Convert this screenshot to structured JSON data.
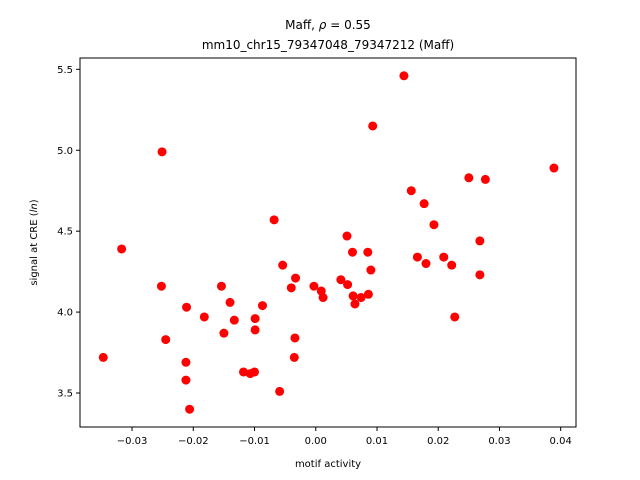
{
  "chart_data": {
    "type": "scatter",
    "title_line1_prefix": "Maff, ",
    "title_line1_rho": "ρ",
    "title_line1_suffix": " = 0.55",
    "title_line2": "mm10_chr15_79347048_79347212 (Maff)",
    "xlabel": "motif activity",
    "ylabel_prefix": "signal at CRE (",
    "ylabel_italic": "ln",
    "ylabel_suffix": ")",
    "xlim": [
      -0.0385,
      0.0425
    ],
    "ylim": [
      3.29,
      5.57
    ],
    "xticks": [
      -0.03,
      -0.02,
      -0.01,
      0.0,
      0.01,
      0.02,
      0.03,
      0.04
    ],
    "xtick_labels": [
      "−0.03",
      "−0.02",
      "−0.01",
      "0.00",
      "0.01",
      "0.02",
      "0.03",
      "0.04"
    ],
    "yticks": [
      3.5,
      4.0,
      4.5,
      5.0,
      5.5
    ],
    "ytick_labels": [
      "3.5",
      "4.0",
      "4.5",
      "5.0",
      "5.5"
    ],
    "grid": false,
    "marker_color": "#ff0000",
    "points": [
      {
        "x": -0.0347,
        "y": 3.72
      },
      {
        "x": -0.0317,
        "y": 4.39
      },
      {
        "x": -0.0251,
        "y": 4.99
      },
      {
        "x": -0.0252,
        "y": 4.16
      },
      {
        "x": -0.0245,
        "y": 3.83
      },
      {
        "x": -0.0211,
        "y": 4.03
      },
      {
        "x": -0.0212,
        "y": 3.69
      },
      {
        "x": -0.0212,
        "y": 3.58
      },
      {
        "x": -0.0206,
        "y": 3.4
      },
      {
        "x": -0.0182,
        "y": 3.97
      },
      {
        "x": -0.0154,
        "y": 4.16
      },
      {
        "x": -0.015,
        "y": 3.87
      },
      {
        "x": -0.014,
        "y": 4.06
      },
      {
        "x": -0.0133,
        "y": 3.95
      },
      {
        "x": -0.0118,
        "y": 3.63
      },
      {
        "x": -0.0107,
        "y": 3.62
      },
      {
        "x": -0.01,
        "y": 3.63
      },
      {
        "x": -0.0099,
        "y": 3.96
      },
      {
        "x": -0.0099,
        "y": 3.89
      },
      {
        "x": -0.0087,
        "y": 4.04
      },
      {
        "x": -0.0068,
        "y": 4.57
      },
      {
        "x": -0.0059,
        "y": 3.51
      },
      {
        "x": -0.0054,
        "y": 4.29
      },
      {
        "x": -0.004,
        "y": 4.15
      },
      {
        "x": -0.0033,
        "y": 4.21
      },
      {
        "x": -0.0034,
        "y": 3.84
      },
      {
        "x": -0.0035,
        "y": 3.72
      },
      {
        "x": -0.0003,
        "y": 4.16
      },
      {
        "x": 0.0009,
        "y": 4.13
      },
      {
        "x": 0.0012,
        "y": 4.09
      },
      {
        "x": 0.0041,
        "y": 4.2
      },
      {
        "x": 0.0051,
        "y": 4.47
      },
      {
        "x": 0.0052,
        "y": 4.17
      },
      {
        "x": 0.006,
        "y": 4.37
      },
      {
        "x": 0.0061,
        "y": 4.1
      },
      {
        "x": 0.0064,
        "y": 4.05
      },
      {
        "x": 0.0074,
        "y": 4.09
      },
      {
        "x": 0.0085,
        "y": 4.37
      },
      {
        "x": 0.0086,
        "y": 4.11
      },
      {
        "x": 0.009,
        "y": 4.26
      },
      {
        "x": 0.0093,
        "y": 5.15
      },
      {
        "x": 0.0144,
        "y": 5.46
      },
      {
        "x": 0.0156,
        "y": 4.75
      },
      {
        "x": 0.0166,
        "y": 4.34
      },
      {
        "x": 0.0177,
        "y": 4.67
      },
      {
        "x": 0.018,
        "y": 4.3
      },
      {
        "x": 0.0193,
        "y": 4.54
      },
      {
        "x": 0.0209,
        "y": 4.34
      },
      {
        "x": 0.0222,
        "y": 4.29
      },
      {
        "x": 0.0227,
        "y": 3.97
      },
      {
        "x": 0.025,
        "y": 4.83
      },
      {
        "x": 0.0268,
        "y": 4.44
      },
      {
        "x": 0.0268,
        "y": 4.23
      },
      {
        "x": 0.0277,
        "y": 4.82
      },
      {
        "x": 0.0389,
        "y": 4.89
      }
    ]
  }
}
